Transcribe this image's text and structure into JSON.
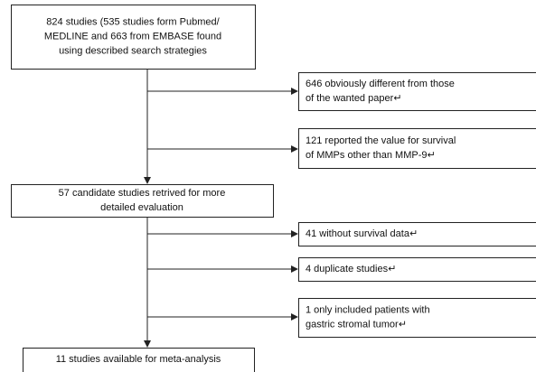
{
  "nodes": [
    {
      "lines": [
        "824 studies (535 studies form Pubmed/",
        "MEDLINE and 663 from EMBASE found",
        "using described search strategies"
      ]
    },
    {
      "lines": [
        "646 obviously different from those",
        "of the wanted paper↵"
      ]
    },
    {
      "lines": [
        "121 reported the value for survival",
        "of MMPs other than MMP-9↵"
      ]
    },
    {
      "lines": [
        "57 candidate studies retrived for more",
        "detailed evaluation"
      ]
    },
    {
      "lines": [
        "41 without survival data↵"
      ]
    },
    {
      "lines": [
        "4 duplicate studies↵"
      ]
    },
    {
      "lines": [
        "1  only  included  patients  with",
        "gastric stromal tumor↵"
      ]
    },
    {
      "lines": [
        "11 studies available for meta-analysis"
      ]
    }
  ]
}
